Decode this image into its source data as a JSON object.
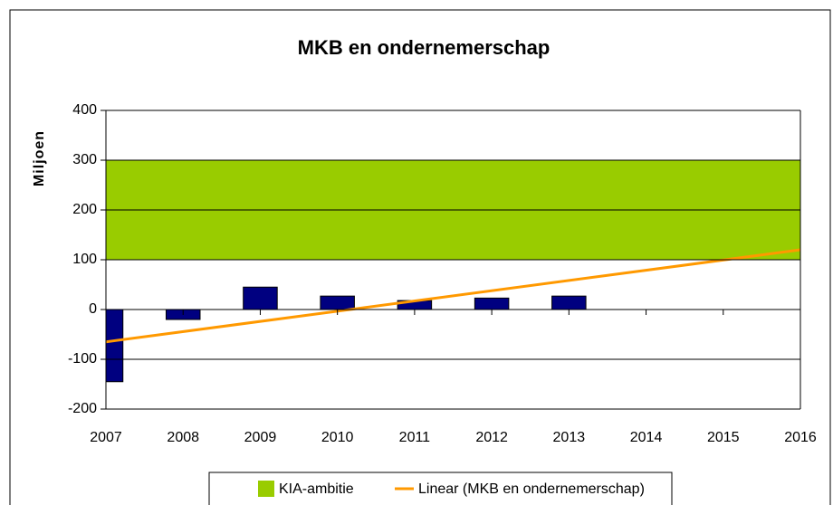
{
  "chart_data": {
    "type": "bar",
    "title": "MKB en ondernemerschap",
    "y_label": "Miljoen",
    "xlim": [
      2007,
      2016
    ],
    "xticks": [
      2007,
      2008,
      2009,
      2010,
      2011,
      2012,
      2013,
      2014,
      2015,
      2016
    ],
    "ylim": [
      -200,
      400
    ],
    "yticks": [
      -200,
      -100,
      0,
      100,
      200,
      300,
      400
    ],
    "grid": true,
    "bars": {
      "color": "#000080",
      "x": [
        2007,
        2008,
        2009,
        2010,
        2011,
        2012,
        2013
      ],
      "values": [
        -145,
        -20,
        45,
        27,
        18,
        23,
        27
      ]
    },
    "band": {
      "name": "KIA-ambitie",
      "color": "#99cc00",
      "range": [
        100,
        300
      ]
    },
    "trend": {
      "name": "Linear (MKB en ondernemerschap)",
      "color": "#ff9900",
      "x": [
        2007,
        2016
      ],
      "values": [
        -65,
        120
      ]
    },
    "legend": "bottom"
  }
}
